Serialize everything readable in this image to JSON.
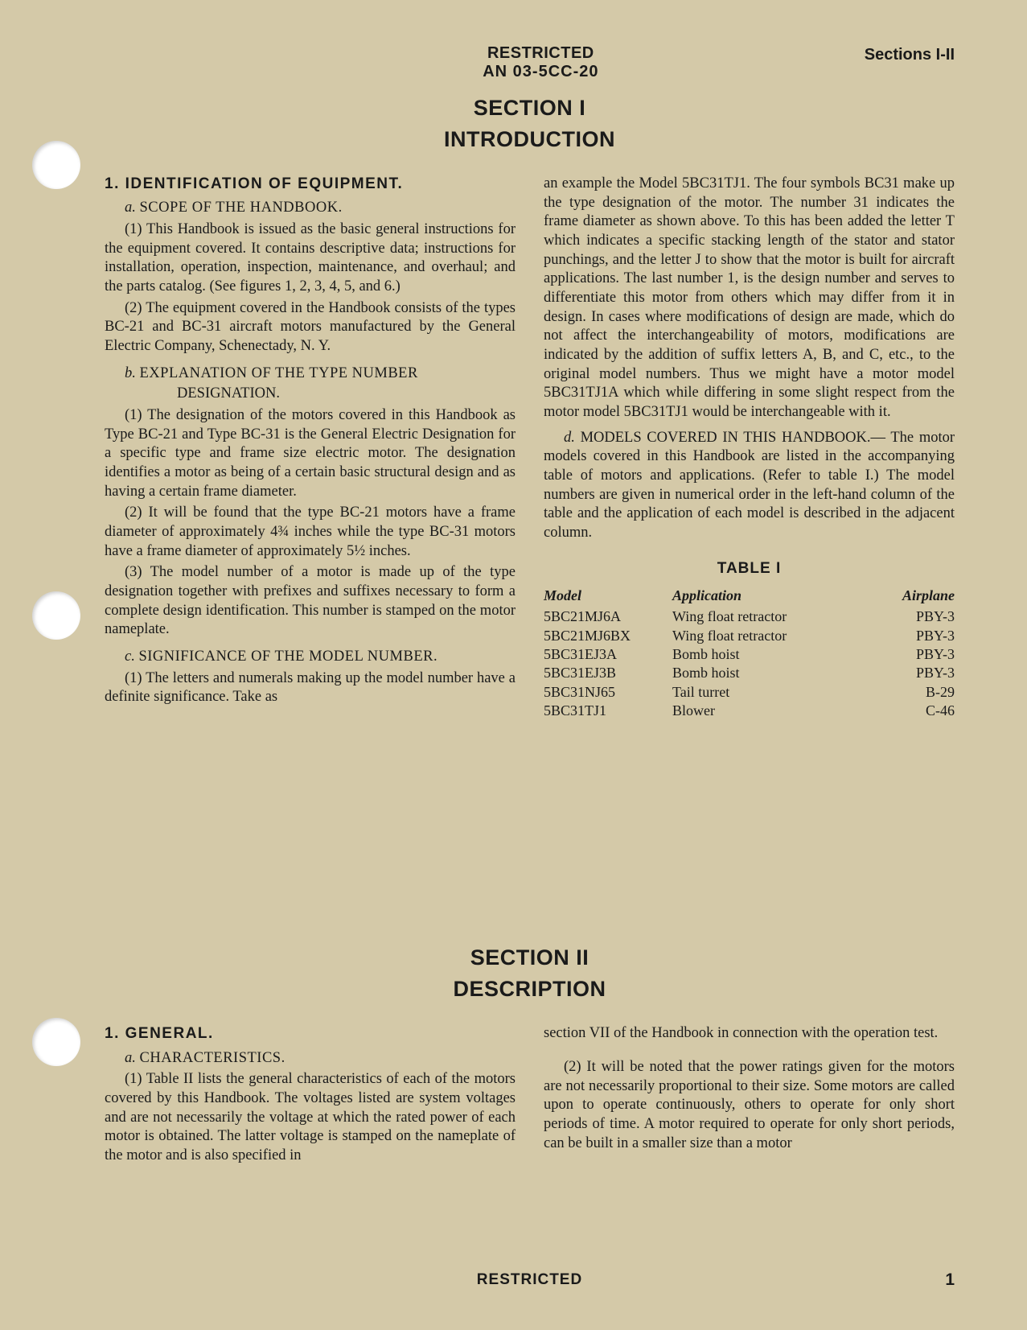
{
  "header": {
    "restricted": "RESTRICTED",
    "doc_number": "AN 03-5CC-20",
    "sections_label": "Sections I-II"
  },
  "section1": {
    "title": "SECTION I",
    "subtitle": "INTRODUCTION",
    "h1": "1. IDENTIFICATION OF EQUIPMENT.",
    "h2a_letter": "a.",
    "h2a_text": "SCOPE OF THE HANDBOOK.",
    "p_a1": "(1) This Handbook is issued as the basic general instructions for the equipment covered. It contains descriptive data; instructions for installation, operation, inspection, maintenance, and overhaul; and the parts catalog. (See figures 1, 2, 3, 4, 5, and 6.)",
    "p_a2": "(2) The equipment covered in the Handbook consists of the types BC-21 and BC-31 aircraft motors manufactured by the General Electric Company, Schenectady, N. Y.",
    "h2b_letter": "b.",
    "h2b_text": "EXPLANATION OF THE TYPE NUMBER",
    "h2b_text2": "DESIGNATION.",
    "p_b1": "(1) The designation of the motors covered in this Handbook as Type BC-21 and Type BC-31 is the General Electric Designation for a specific type and frame size electric motor. The designation identifies a motor as being of a certain basic structural design and as having a certain frame diameter.",
    "p_b2": "(2) It will be found that the type BC-21 motors have a frame diameter of approximately 4¾ inches while the type BC-31 motors have a frame diameter of approximately 5½ inches.",
    "p_b3": "(3) The model number of a motor is made up of the type designation together with prefixes and suffixes necessary to form a complete design identification. This number is stamped on the motor nameplate.",
    "h2c_letter": "c.",
    "h2c_text": "SIGNIFICANCE OF THE MODEL NUMBER.",
    "p_c1_left": "(1) The letters and numerals making up the model number have a definite significance. Take as",
    "p_c1_right": "an example the Model 5BC31TJ1. The four symbols BC31 make up the type designation of the motor. The number 31 indicates the frame diameter as shown above. To this has been added the letter T which indicates a specific stacking length of the stator and stator punchings, and the letter J to show that the motor is built for aircraft applications. The last number 1, is the design number and serves to differentiate this motor from others which may differ from it in design. In cases where modifications of design are made, which do not affect the interchangeability of motors, modifications are indicated by the addition of suffix letters A, B, and C, etc., to the original model numbers. Thus we might have a motor model 5BC31TJ1A which while differing in some slight respect from the motor model 5BC31TJ1 would be interchangeable with it.",
    "h2d_letter": "d.",
    "h2d_text": "MODELS COVERED IN THIS HANDBOOK.—",
    "p_d1": "The motor models covered in this Handbook are listed in the accompanying table of motors and applications. (Refer to table I.) The model numbers are given in numerical order in the left-hand column of the table and the application of each model is described in the adjacent column."
  },
  "table1": {
    "title": "TABLE I",
    "headers": {
      "c1": "Model",
      "c2": "Application",
      "c3": "Airplane"
    },
    "rows": [
      {
        "c1": "5BC21MJ6A",
        "c2": "Wing float retractor",
        "c3": "PBY-3"
      },
      {
        "c1": "5BC21MJ6BX",
        "c2": "Wing float retractor",
        "c3": "PBY-3"
      },
      {
        "c1": "5BC31EJ3A",
        "c2": "Bomb hoist",
        "c3": "PBY-3"
      },
      {
        "c1": "5BC31EJ3B",
        "c2": "Bomb hoist",
        "c3": "PBY-3"
      },
      {
        "c1": "5BC31NJ65",
        "c2": "Tail turret",
        "c3": "B-29"
      },
      {
        "c1": "5BC31TJ1",
        "c2": "Blower",
        "c3": "C-46"
      }
    ]
  },
  "section2": {
    "title": "SECTION II",
    "subtitle": "DESCRIPTION",
    "h1": "1. GENERAL.",
    "h2a_letter": "a.",
    "h2a_text": "CHARACTERISTICS.",
    "p_a1_left": "(1) Table II lists the general characteristics of each of the motors covered by this Handbook. The voltages listed are system voltages and are not necessarily the voltage at which the rated power of each motor is obtained. The latter voltage is stamped on the nameplate of the motor and is also specified in",
    "p_a1_right": "section VII of the Handbook in connection with the operation test.",
    "p_a2": "(2) It will be noted that the power ratings given for the motors are not necessarily proportional to their size. Some motors are called upon to operate continuously, others to operate for only short periods of time. A motor required to operate for only short periods, can be built in a smaller size than a motor"
  },
  "footer": {
    "restricted": "RESTRICTED",
    "page": "1"
  },
  "colors": {
    "background": "#d4c9a8",
    "text": "#1a1a1a",
    "hole": "#ffffff"
  }
}
